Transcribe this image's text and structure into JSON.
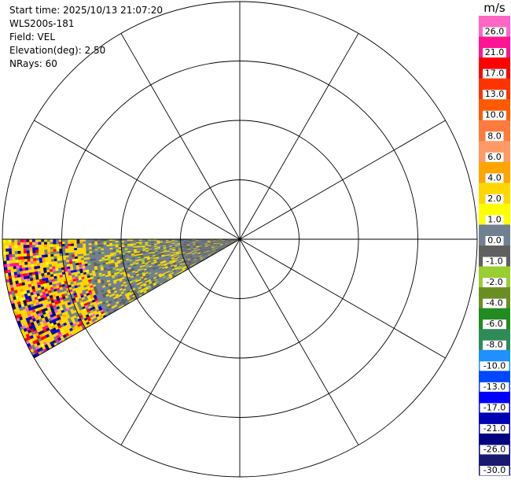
{
  "header": {
    "start_time": "Start time: 2025/10/13 21:07:20",
    "instrument": "WLS200s-181",
    "field": "Field: VEL",
    "elevation": "Elevation(deg): 2.50",
    "nrays": "NRays: 60"
  },
  "chart_data": {
    "type": "heatmap",
    "title": "",
    "projection": "polar-ppi",
    "field": "VEL",
    "elevation_deg": 2.5,
    "nrays": 60,
    "range_rings": 4,
    "spoke_angles_deg": [
      0,
      30,
      60,
      90,
      120,
      150,
      180,
      210,
      240,
      270,
      300,
      330
    ],
    "sector_azimuth_deg": [
      240,
      270
    ],
    "colorbar": {
      "units": "m/s",
      "ticks": [
        "26.0",
        "21.0",
        "17.0",
        "13.0",
        "10.0",
        "8.0",
        "6.0",
        "4.0",
        "2.0",
        "1.0",
        "0.0",
        "-1.0",
        "-2.0",
        "-4.0",
        "-6.0",
        "-8.0",
        "-10.0",
        "-13.0",
        "-17.0",
        "-21.0",
        "-26.0",
        "-30.0"
      ],
      "colors": [
        "#ff66c4",
        "#ff1493",
        "#ff0000",
        "#ff3300",
        "#ff5a00",
        "#ff7a3d",
        "#ff9966",
        "#ffa500",
        "#ffd700",
        "#ffff00",
        "#708090",
        "#606060",
        "#9acd32",
        "#6b8e23",
        "#228b22",
        "#2e8b57",
        "#1e90ff",
        "#0047ff",
        "#0000ff",
        "#0000b4",
        "#000080",
        "#191970"
      ]
    },
    "velocity_pattern": [
      {
        "range_fraction": [
          0.0,
          0.25
        ],
        "dominant": "gray"
      },
      {
        "range_fraction": [
          0.25,
          0.65
        ],
        "dominant": "gray-yellow"
      },
      {
        "range_fraction": [
          0.65,
          1.0
        ],
        "dominant": "mixed-noise"
      }
    ]
  }
}
